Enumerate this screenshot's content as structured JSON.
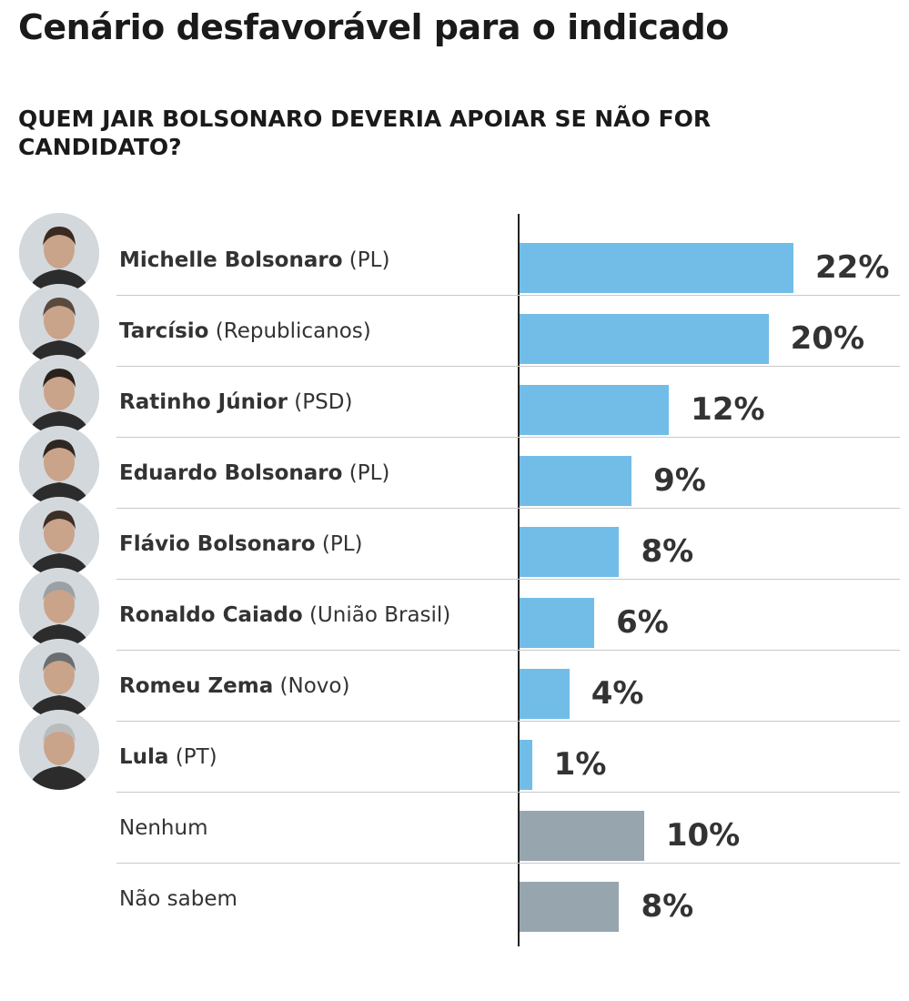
{
  "title": "Cenário desfavorável para o indicado",
  "subtitle": "QUEM JAIR BOLSONARO DEVERIA APOIAR SE NÃO FOR CANDIDATO?",
  "colors": {
    "candidate_bar": "#72bde8",
    "other_bar": "#97a6ae"
  },
  "chart_data": {
    "type": "bar",
    "orientation": "horizontal",
    "unit": "%",
    "categories": [
      {
        "name": "Michelle Bolsonaro",
        "party": "(PL)",
        "value": 22,
        "label": "22%",
        "group": "candidate"
      },
      {
        "name": "Tarcísio",
        "party": "(Republicanos)",
        "value": 20,
        "label": "20%",
        "group": "candidate"
      },
      {
        "name": "Ratinho Júnior",
        "party": "(PSD)",
        "value": 12,
        "label": "12%",
        "group": "candidate"
      },
      {
        "name": "Eduardo Bolsonaro",
        "party": "(PL)",
        "value": 9,
        "label": "9%",
        "group": "candidate"
      },
      {
        "name": "Flávio Bolsonaro",
        "party": "(PL)",
        "value": 8,
        "label": "8%",
        "group": "candidate"
      },
      {
        "name": "Ronaldo Caiado",
        "party": "(União Brasil)",
        "value": 6,
        "label": "6%",
        "group": "candidate"
      },
      {
        "name": "Romeu Zema",
        "party": "(Novo)",
        "value": 4,
        "label": "4%",
        "group": "candidate"
      },
      {
        "name": "Lula",
        "party": "(PT)",
        "value": 1,
        "label": "1%",
        "group": "candidate"
      },
      {
        "name": "Nenhum",
        "party": "",
        "value": 10,
        "label": "10%",
        "group": "other"
      },
      {
        "name": "Não sabem",
        "party": "",
        "value": 8,
        "label": "8%",
        "group": "other"
      }
    ],
    "xlim": [
      0,
      22
    ],
    "grid": false,
    "legend": "none"
  }
}
